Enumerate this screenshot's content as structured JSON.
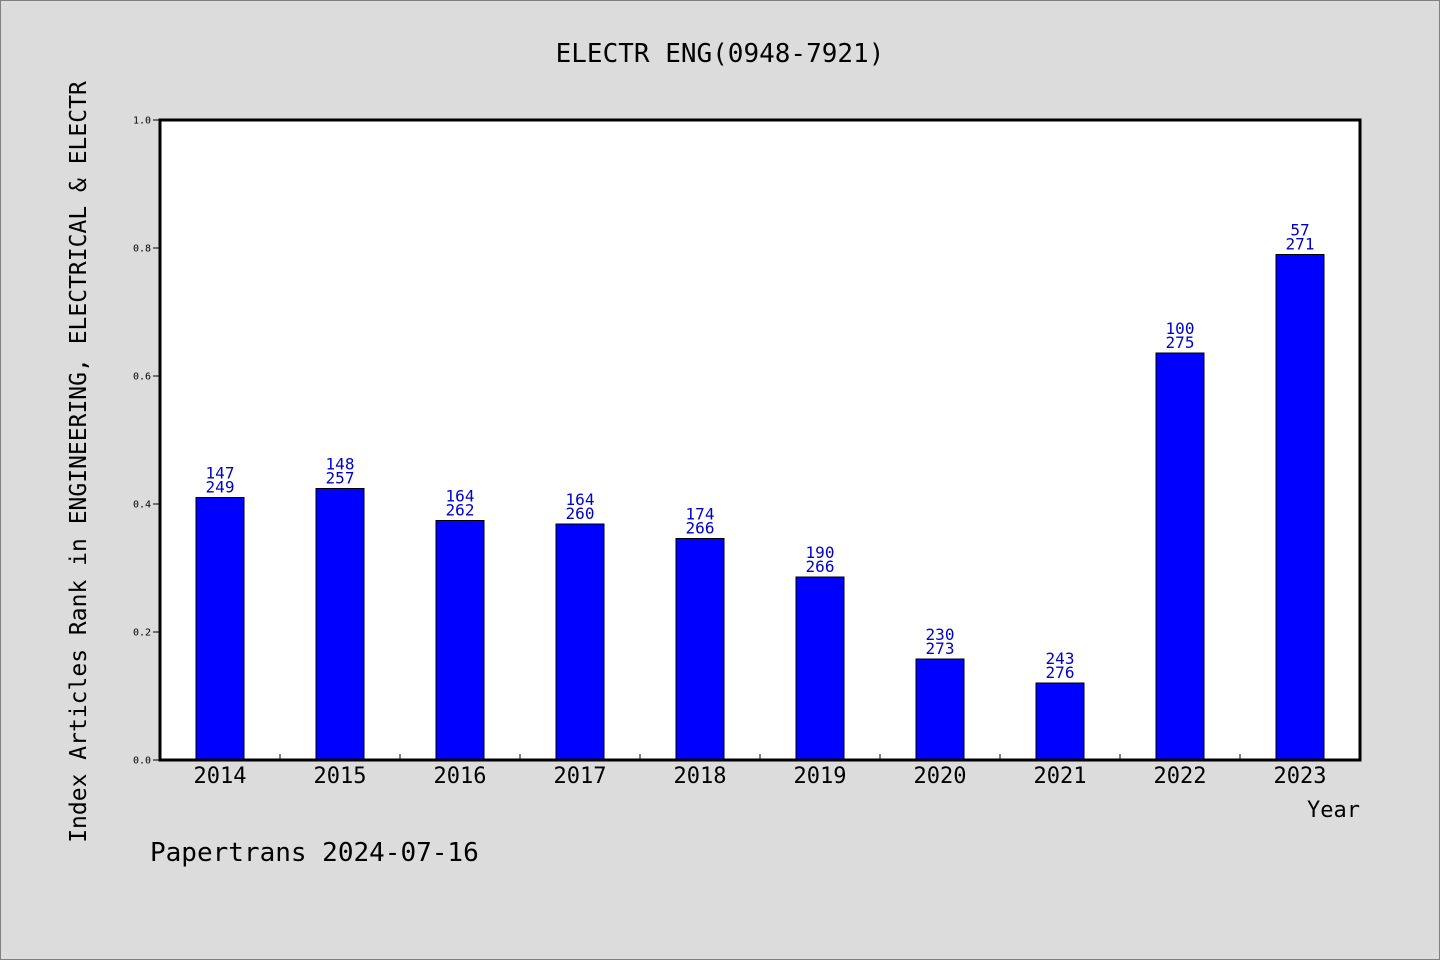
{
  "page": {
    "background": "#dcdcdc",
    "border_color": "#7f7f7f"
  },
  "chart_data": {
    "type": "bar",
    "title": "ELECTR ENG(0948-7921)",
    "xlabel": "Year",
    "ylabel": "Index Articles Rank in ENGINEERING, ELECTRICAL & ELECTR",
    "categories": [
      "2014",
      "2015",
      "2016",
      "2017",
      "2018",
      "2019",
      "2020",
      "2021",
      "2022",
      "2023"
    ],
    "values": [
      0.41,
      0.424,
      0.374,
      0.369,
      0.346,
      0.286,
      0.158,
      0.12,
      0.636,
      0.79
    ],
    "data_labels": [
      [
        "147",
        "249"
      ],
      [
        "148",
        "257"
      ],
      [
        "164",
        "262"
      ],
      [
        "164",
        "260"
      ],
      [
        "174",
        "266"
      ],
      [
        "190",
        "266"
      ],
      [
        "230",
        "273"
      ],
      [
        "243",
        "276"
      ],
      [
        "100",
        "275"
      ],
      [
        "57",
        "271"
      ]
    ],
    "ylim": [
      0,
      1.0
    ],
    "ytick_labels": [
      "0.0",
      "0.2",
      "0.4",
      "0.6",
      "0.8",
      "1.0"
    ],
    "grid": false,
    "colors": {
      "bar": "#0000ff",
      "bar_edge": "#000000",
      "data_label": "#0000cd",
      "plot_background": "#ffffff",
      "axis": "#000000"
    }
  },
  "footer": {
    "text": "Papertrans 2024-07-16"
  }
}
